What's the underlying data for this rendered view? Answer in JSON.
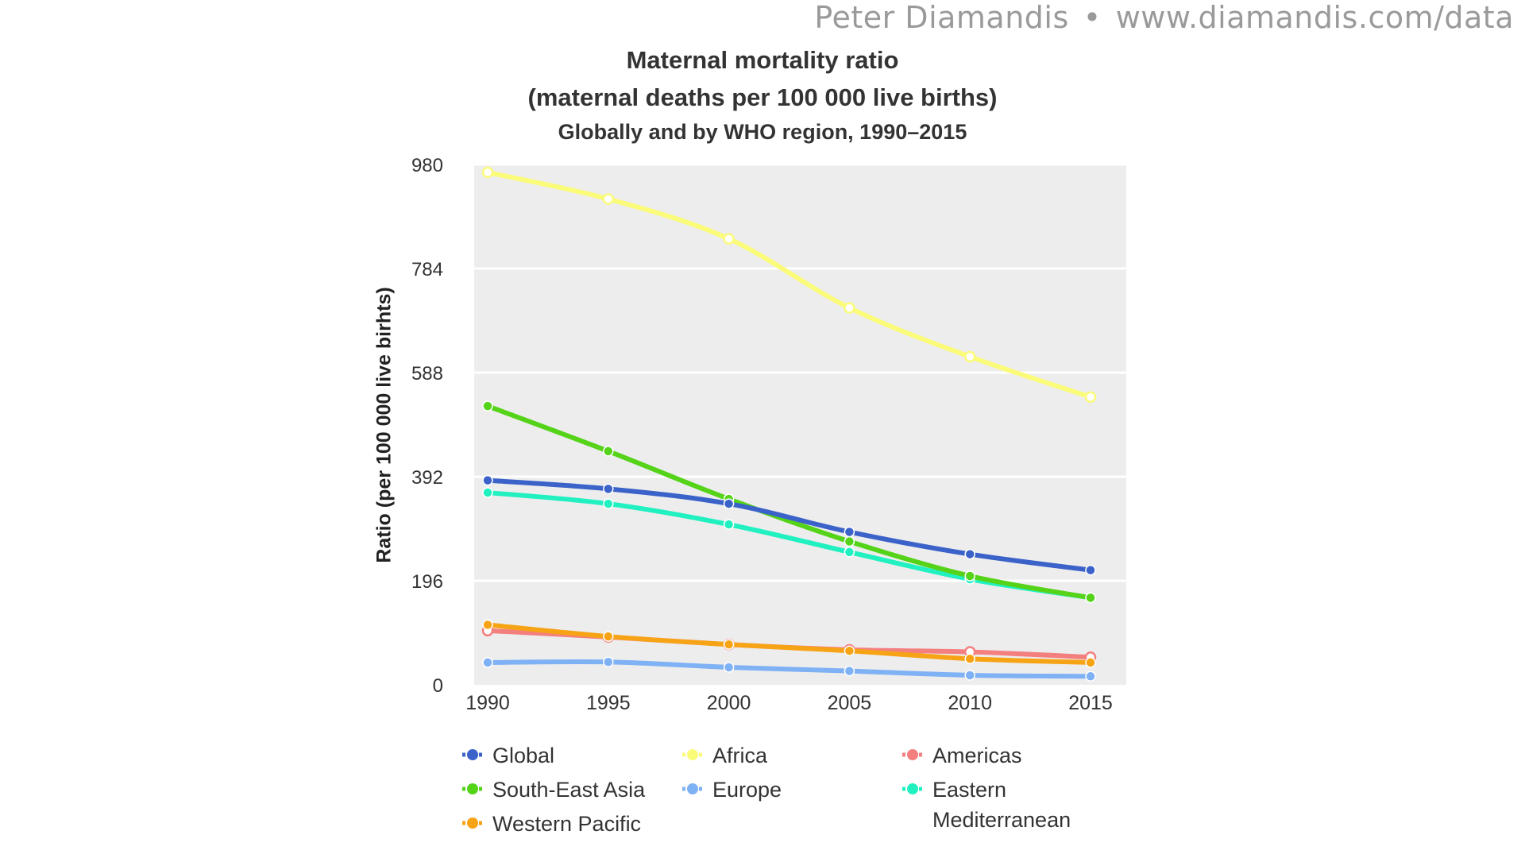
{
  "credit": {
    "author": "Peter Diamandis",
    "separator": "•",
    "url": "www.diamandis.com/data"
  },
  "chart_data": {
    "type": "line",
    "title": "Maternal mortality ratio",
    "title_line2": "(maternal deaths per 100 000 live births)",
    "subtitle": "Globally and by WHO region, 1990–2015",
    "xlabel": "",
    "ylabel": "Ratio (per 100 000 live birhts)",
    "x": [
      1990,
      1995,
      2000,
      2005,
      2010,
      2015
    ],
    "ylim": [
      0,
      980
    ],
    "yticks": [
      0,
      196,
      392,
      588,
      784,
      980
    ],
    "grid": true,
    "legend_position": "bottom",
    "series": [
      {
        "name": "Global",
        "color": "#3a62c9",
        "marker_fill": "#3a62c9",
        "values": [
          385,
          369,
          341,
          288,
          246,
          216
        ]
      },
      {
        "name": "Africa",
        "color": "#fbfb7a",
        "marker_fill": "#ffffff",
        "values": [
          965,
          915,
          840,
          710,
          618,
          542
        ]
      },
      {
        "name": "Americas",
        "color": "#f47f7f",
        "marker_fill": "#ffffff",
        "values": [
          102,
          90,
          76,
          66,
          62,
          52
        ]
      },
      {
        "name": "South-East Asia",
        "color": "#54d318",
        "marker_fill": "#54d318",
        "values": [
          525,
          440,
          350,
          270,
          205,
          164
        ]
      },
      {
        "name": "Europe",
        "color": "#7fb1f5",
        "marker_fill": "#7fb1f5",
        "values": [
          42,
          43,
          33,
          26,
          18,
          16
        ]
      },
      {
        "name": "Eastern Mediterranean",
        "color": "#21f0c0",
        "marker_fill": "#21f0c0",
        "values": [
          362,
          341,
          302,
          250,
          199,
          164
        ]
      },
      {
        "name": "Western Pacific",
        "color": "#f7a316",
        "marker_fill": "#f7a316",
        "values": [
          113,
          91,
          76,
          64,
          49,
          42
        ]
      }
    ]
  }
}
